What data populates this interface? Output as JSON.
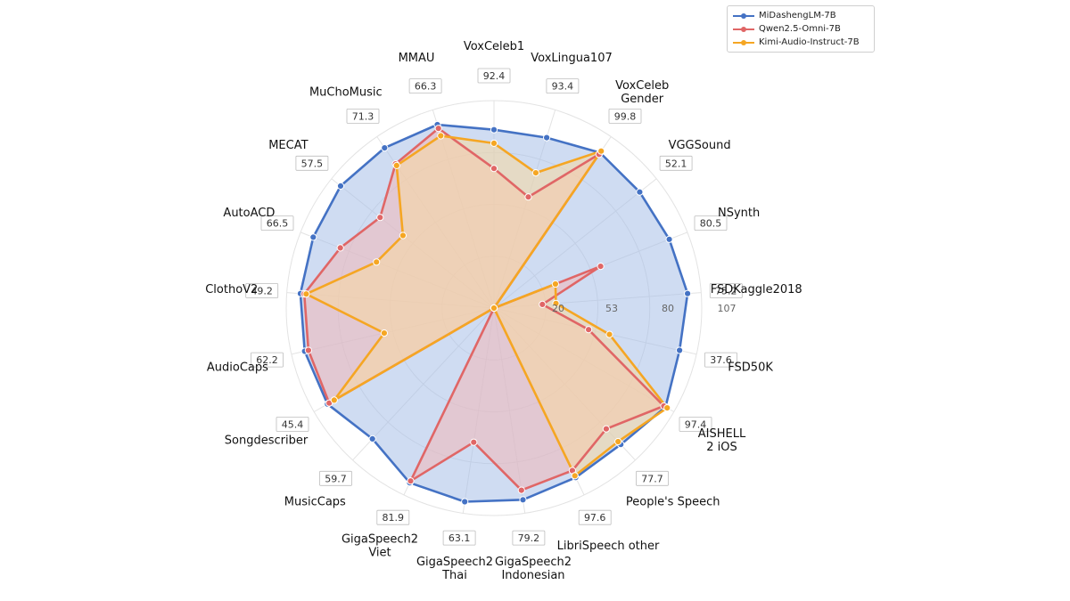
{
  "chart_data": {
    "type": "radar",
    "categories": [
      "VoxCeleb1",
      "VoxLingua107",
      "VoxCeleb\nGender",
      "VGGSound",
      "NSynth",
      "FSDKaggle2018",
      "FSD50K",
      "AISHELL\n2 iOS",
      "People's Speech",
      "LibriSpeech other",
      "GigaSpeech2\nIndonesian",
      "GigaSpeech2\nThai",
      "GigaSpeech2\nViet",
      "MusicCaps",
      "Songdescriber",
      "AudioCaps",
      "ClothoV2",
      "AutoACD",
      "MECAT",
      "MuChoMusic",
      "MMAU"
    ],
    "value_labels": [
      "92.4",
      "93.4",
      "99.8",
      "52.1",
      "80.5",
      "75.2",
      "37.6",
      "97.4",
      "77.7",
      "97.6",
      "79.2",
      "63.1",
      "81.9",
      "59.7",
      "45.4",
      "62.2",
      "49.2",
      "66.5",
      "57.5",
      "71.3",
      "66.3"
    ],
    "radial_ticks": [
      "20",
      "53",
      "80",
      "107"
    ],
    "rlim": [
      0,
      107
    ],
    "grid": true,
    "legend_position": "top-right",
    "series": [
      {
        "name": "MiDashengLM-7B",
        "color": "#4472c4",
        "fill": "#a8bfe8",
        "values": [
          92,
          92,
          97,
          96,
          97,
          100,
          98,
          102,
          96,
          97,
          100,
          101,
          100,
          92,
          99,
          100,
          100,
          100,
          101,
          100,
          99
        ]
      },
      {
        "name": "Qwen2.5-Omni-7B",
        "color": "#e06666",
        "fill": "#f2b8b8",
        "values": [
          72,
          60,
          96,
          0,
          59,
          25,
          50,
          101,
          85,
          93,
          95,
          70,
          99,
          0,
          98,
          98,
          98,
          85,
          75,
          90,
          97
        ]
      },
      {
        "name": "Kimi-Audio-Instruct-7B",
        "color": "#f5a623",
        "fill": "#f8d9a0",
        "values": [
          85,
          73,
          98,
          0,
          34,
          32,
          61,
          103,
          94,
          96,
          0,
          0,
          0,
          0,
          95,
          58,
          97,
          65,
          60,
          89,
          93
        ]
      }
    ]
  }
}
